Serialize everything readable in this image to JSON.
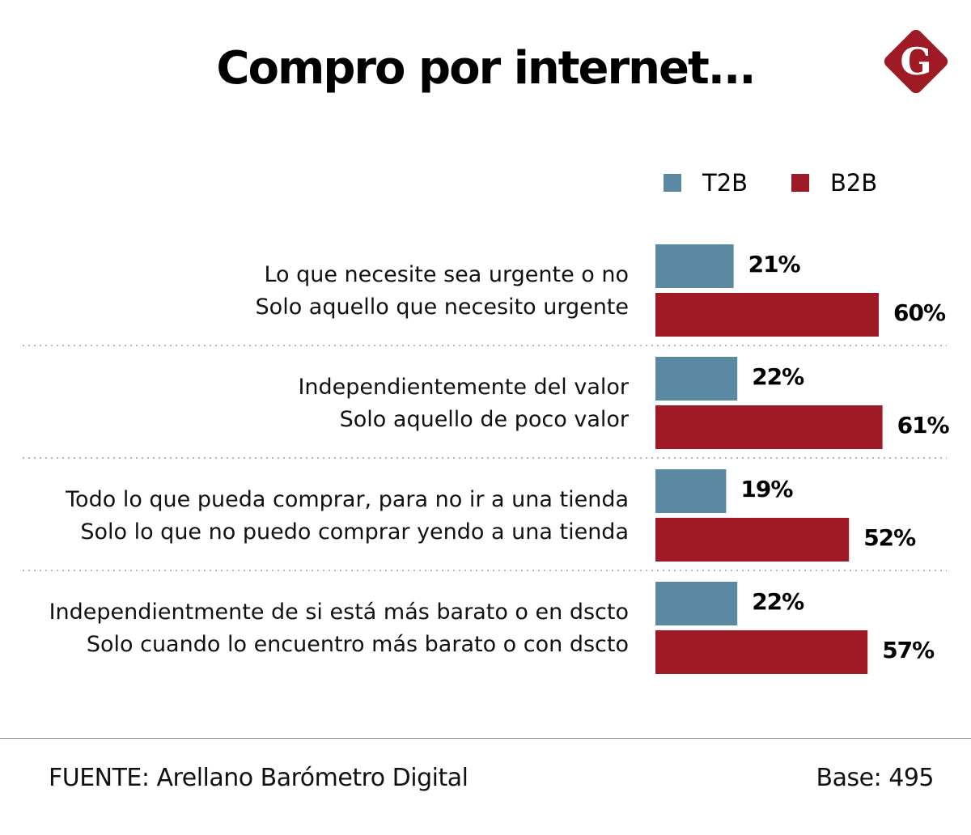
{
  "header": {
    "title": "Compro por internet..."
  },
  "logo": {
    "letter": "G",
    "color": "#9e1b26"
  },
  "footer": {
    "source": "FUENTE: Arellano Barómetro Digital",
    "base": "Base: 495"
  },
  "chart_data": {
    "type": "bar",
    "orientation": "horizontal",
    "title": "Compro por internet...",
    "xlabel": "",
    "ylabel": "",
    "xlim": [
      0,
      100
    ],
    "grid": false,
    "legend_position": "top-right",
    "value_suffix": "%",
    "series": [
      {
        "name": "T2B",
        "color": "#5b89a1",
        "values": [
          21,
          22,
          19,
          22
        ]
      },
      {
        "name": "B2B",
        "color": "#9e1b26",
        "values": [
          60,
          61,
          52,
          57
        ]
      }
    ],
    "categories": [
      {
        "t2b_label": "Lo que necesite sea urgente o no",
        "b2b_label": "Solo aquello que necesito urgente"
      },
      {
        "t2b_label": "Independientemente del valor",
        "b2b_label": "Solo aquello de poco valor"
      },
      {
        "t2b_label": "Todo lo que pueda comprar, para no ir a una tienda",
        "b2b_label": "Solo lo que no puedo comprar yendo a una tienda"
      },
      {
        "t2b_label": "Independientmente de si está más barato o en dscto",
        "b2b_label": "Solo cuando lo encuentro más barato o con dscto"
      }
    ]
  }
}
